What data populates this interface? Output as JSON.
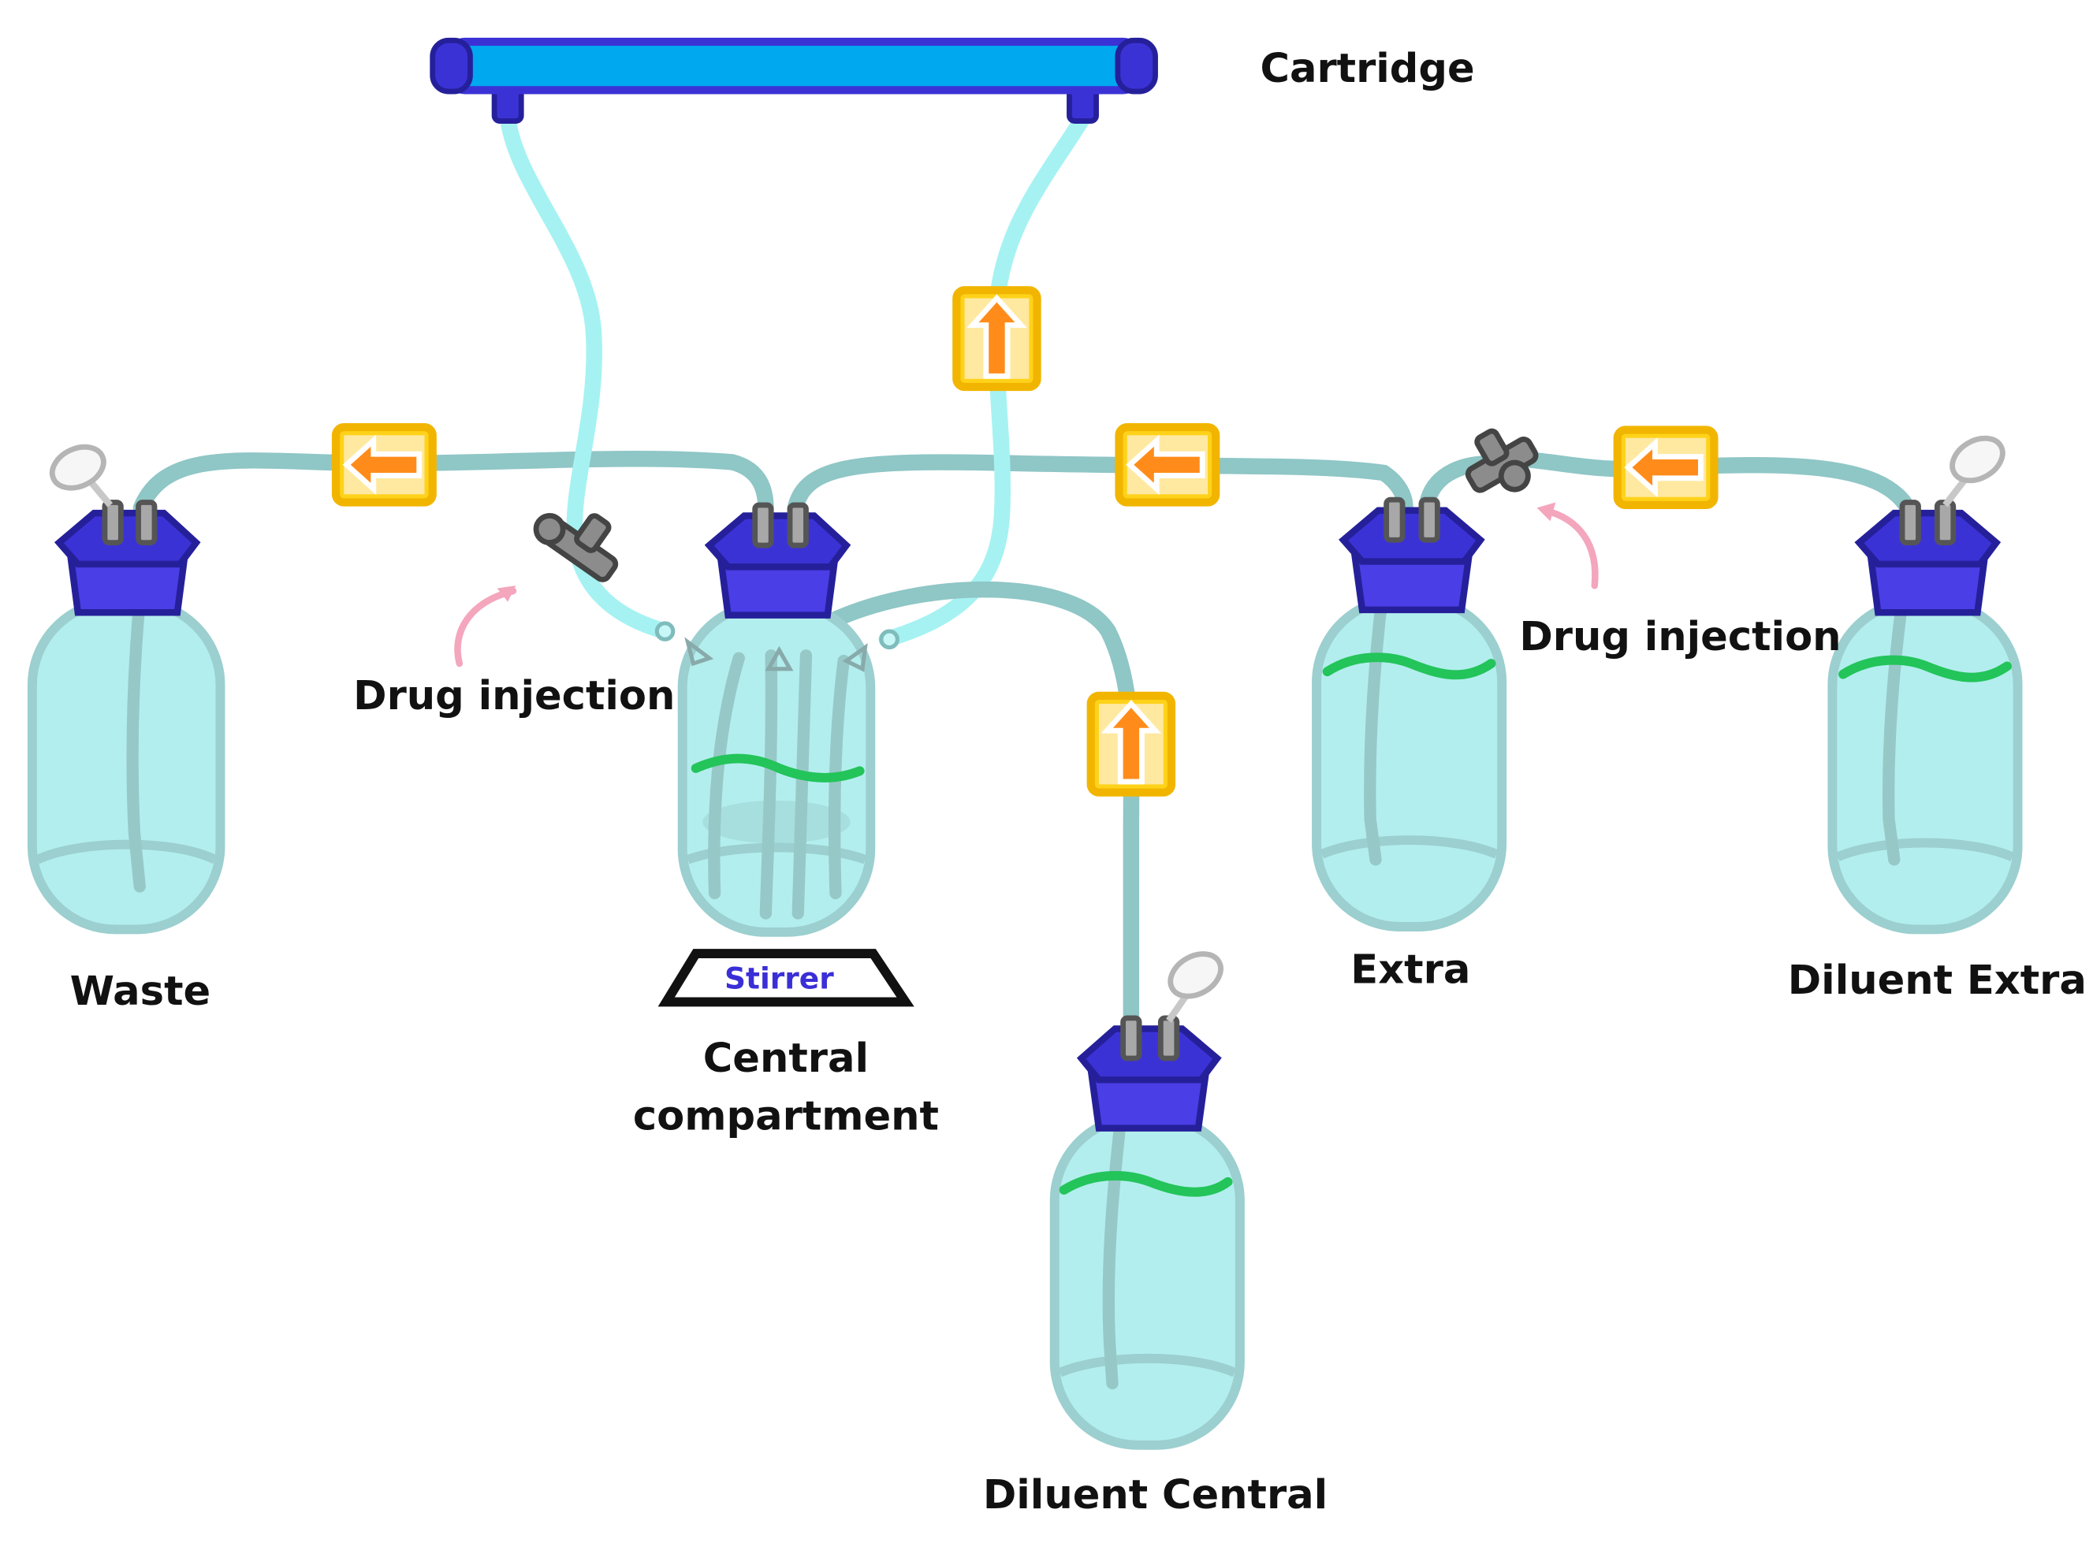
{
  "labels": {
    "cartridge": "Cartridge",
    "waste": "Waste",
    "stirrer": "Stirrer",
    "central_line1": "Central",
    "central_line2": "compartment",
    "diluent_central": "Diluent Central",
    "extra": "Extra",
    "diluent_extra": "Diluent Extra",
    "drug_injection_left": "Drug injection",
    "drug_injection_right": "Drug injection"
  },
  "colors": {
    "bottle_glass": "#b3eeee",
    "cap": "#4a3ee6",
    "cartridge": "#00a8f0",
    "pump": "#ffd21a",
    "pump_arrow": "#ff8c1a",
    "liquid_line": "#23c45a",
    "stirrer_text": "#3a2fd6"
  },
  "icons": {
    "pump_direction": [
      "arrow-left",
      "arrow-up",
      "arrow-left",
      "arrow-up",
      "arrow-left"
    ],
    "valve": "three-way-stopcock-icon",
    "filter": "air-filter-icon"
  }
}
